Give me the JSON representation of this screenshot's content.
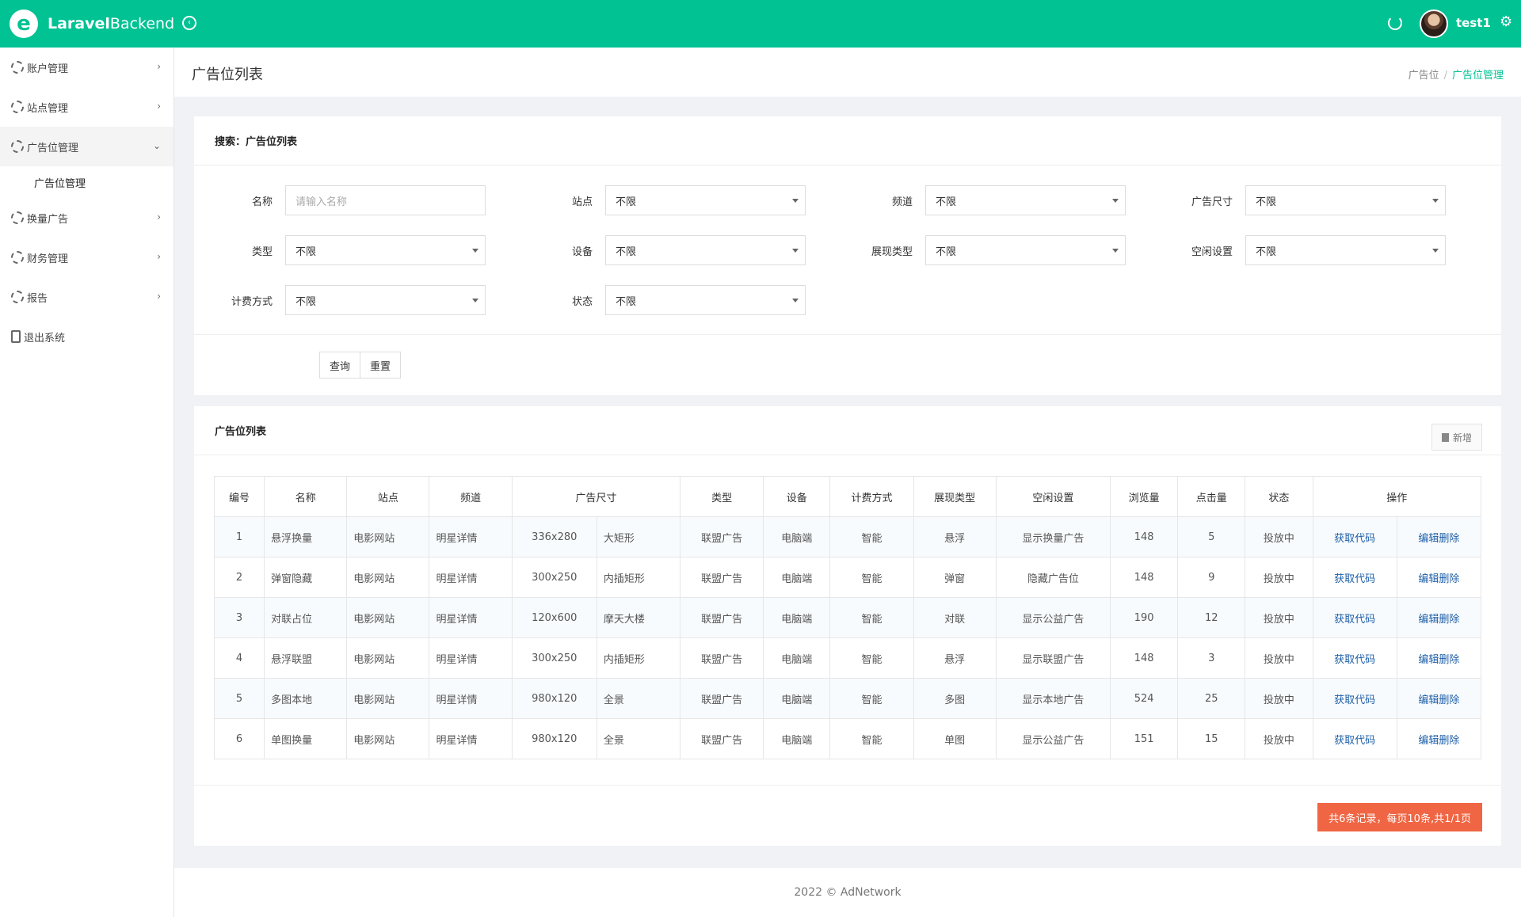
{
  "app": {
    "title": "LaravelBackend",
    "title_bold": "Laravel",
    "title_rest": "Backend",
    "user": "test1",
    "logo_letter": "e"
  },
  "header": {
    "page_title": "广告位列表",
    "breadcrumb": [
      "广告位",
      "广告位管理"
    ]
  },
  "sidebar": {
    "items": [
      {
        "label": "账户管理"
      },
      {
        "label": "站点管理"
      },
      {
        "label": "广告位管理",
        "open": true
      },
      {
        "label": "换量广告"
      },
      {
        "label": "财务管理"
      },
      {
        "label": "报告"
      },
      {
        "label": "退出系统"
      }
    ],
    "sub_item": "广告位管理"
  },
  "search": {
    "title": "搜索：广告位列表",
    "fields": [
      {
        "label": "名称",
        "value": "",
        "placeholder": "请输入名称"
      },
      {
        "label": "站点",
        "value": "不限"
      },
      {
        "label": "频道",
        "value": "不限"
      },
      {
        "label": "广告尺寸",
        "value": "不限"
      },
      {
        "label": "类型",
        "value": "不限"
      },
      {
        "label": "设备",
        "value": "不限"
      },
      {
        "label": "展现类型",
        "value": "不限"
      },
      {
        "label": "空闲设置",
        "value": "不限"
      },
      {
        "label": "计费方式",
        "value": "不限"
      },
      {
        "label": "状态",
        "value": "不限"
      }
    ],
    "query_label": "查询",
    "reset_label": "重置"
  },
  "list": {
    "title": "广告位列表",
    "new_label": "新增",
    "columns": [
      "编号",
      "名称",
      "站点",
      "频道",
      "广告尺寸",
      "类型",
      "设备",
      "计费方式",
      "展现类型",
      "空闲设置",
      "浏览量",
      "点击量",
      "状态",
      "操作"
    ],
    "rows": [
      {
        "id": "1",
        "name": "悬浮换量",
        "site": "电影网站",
        "channel": "明星详情",
        "size": "336x280",
        "size_name": "大矩形",
        "type": "联盟广告",
        "device": "电脑端",
        "billing": "智能",
        "display": "悬浮",
        "idle": "显示换量广告",
        "views": "148",
        "clicks": "5",
        "status": "投放中",
        "op_code": "获取代码",
        "op_edit": "编辑删除"
      },
      {
        "id": "2",
        "name": "弹窗隐藏",
        "site": "电影网站",
        "channel": "明星详情",
        "size": "300x250",
        "size_name": "内插矩形",
        "type": "联盟广告",
        "device": "电脑端",
        "billing": "智能",
        "display": "弹窗",
        "idle": "隐藏广告位",
        "views": "148",
        "clicks": "9",
        "status": "投放中",
        "op_code": "获取代码",
        "op_edit": "编辑删除"
      },
      {
        "id": "3",
        "name": "对联占位",
        "site": "电影网站",
        "channel": "明星详情",
        "size": "120x600",
        "size_name": "摩天大楼",
        "type": "联盟广告",
        "device": "电脑端",
        "billing": "智能",
        "display": "对联",
        "idle": "显示公益广告",
        "views": "190",
        "clicks": "12",
        "status": "投放中",
        "op_code": "获取代码",
        "op_edit": "编辑删除"
      },
      {
        "id": "4",
        "name": "悬浮联盟",
        "site": "电影网站",
        "channel": "明星详情",
        "size": "300x250",
        "size_name": "内插矩形",
        "type": "联盟广告",
        "device": "电脑端",
        "billing": "智能",
        "display": "悬浮",
        "idle": "显示联盟广告",
        "views": "148",
        "clicks": "3",
        "status": "投放中",
        "op_code": "获取代码",
        "op_edit": "编辑删除"
      },
      {
        "id": "5",
        "name": "多图本地",
        "site": "电影网站",
        "channel": "明星详情",
        "size": "980x120",
        "size_name": "全景",
        "type": "联盟广告",
        "device": "电脑端",
        "billing": "智能",
        "display": "多图",
        "idle": "显示本地广告",
        "views": "524",
        "clicks": "25",
        "status": "投放中",
        "op_code": "获取代码",
        "op_edit": "编辑删除"
      },
      {
        "id": "6",
        "name": "单图换量",
        "site": "电影网站",
        "channel": "明星详情",
        "size": "980x120",
        "size_name": "全景",
        "type": "联盟广告",
        "device": "电脑端",
        "billing": "智能",
        "display": "单图",
        "idle": "显示公益广告",
        "views": "151",
        "clicks": "15",
        "status": "投放中",
        "op_code": "获取代码",
        "op_edit": "编辑删除"
      }
    ],
    "pager": "共6条记录，每页10条,共1/1页"
  },
  "footer": "2022 © AdNetwork",
  "colors": {
    "primary": "#00c293",
    "pager": "#f06543",
    "link": "#1e5fa8"
  }
}
